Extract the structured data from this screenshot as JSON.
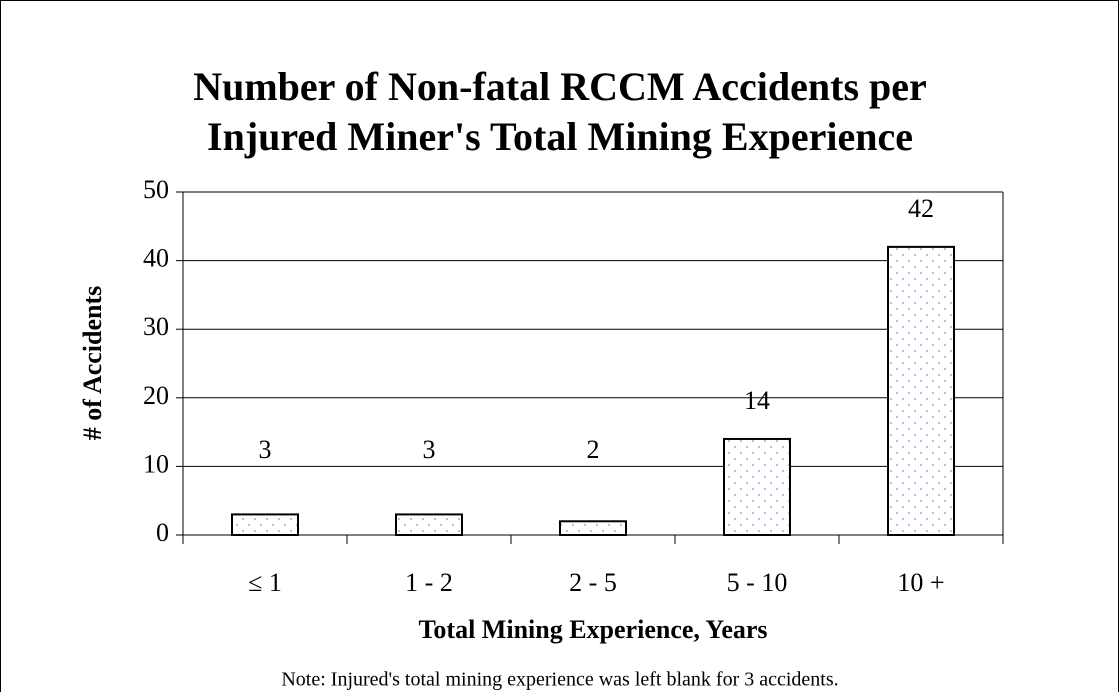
{
  "chart_data": {
    "type": "bar",
    "title": "Number of Non-fatal RCCM Accidents per Injured Miner's Total Mining Experience",
    "x_label": "Total Mining Experience, Years",
    "y_label": "# of Accidents",
    "note": "Note: Injured's total mining experience was left blank for 3 accidents.",
    "categories": [
      "≤ 1",
      "1 - 2",
      "2 - 5",
      "5 - 10",
      "10 +"
    ],
    "values": [
      3,
      3,
      2,
      14,
      42
    ],
    "color": "#8f8fd8",
    "ylim": [
      0,
      50
    ],
    "yticks": [
      0,
      10,
      20,
      30,
      40,
      50
    ],
    "grid": true
  }
}
